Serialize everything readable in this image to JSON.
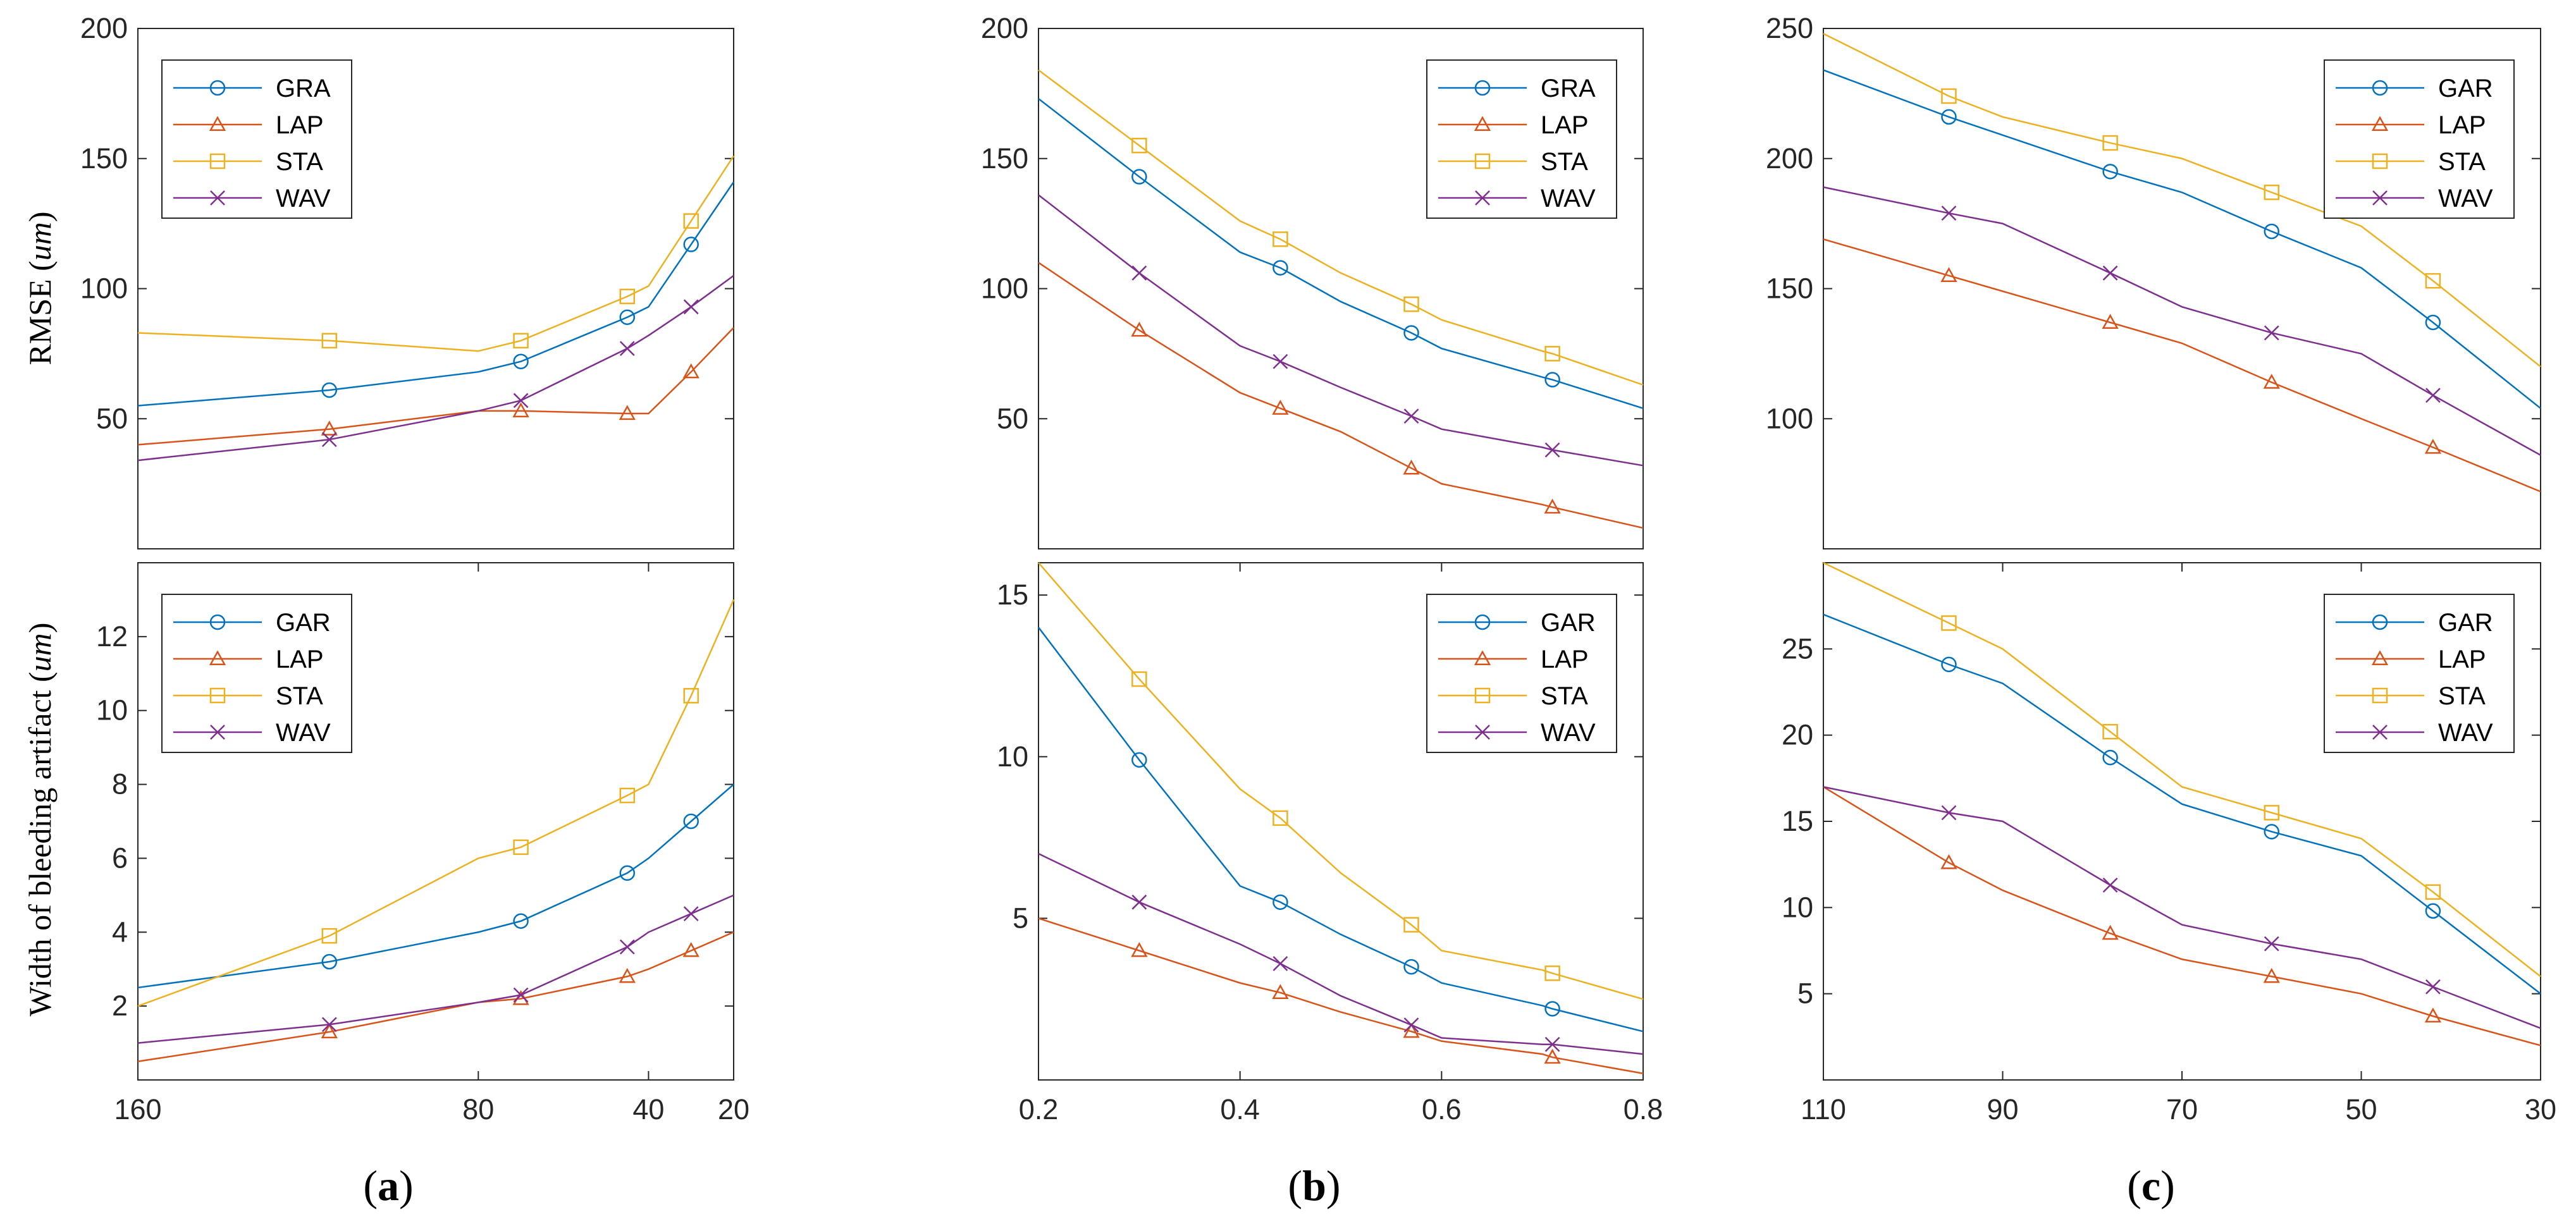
{
  "figure": {
    "colors": {
      "axis": "#262626",
      "series": [
        "#0072BD",
        "#D95319",
        "#EDB120",
        "#7E2F8E"
      ]
    },
    "panel_labels": [
      {
        "open": "(",
        "letter": "a",
        "close": ")"
      },
      {
        "open": "(",
        "letter": "b",
        "close": ")"
      },
      {
        "open": "(",
        "letter": "c",
        "close": ")"
      }
    ]
  },
  "chart_data": [
    {
      "id": "a-top",
      "type": "line",
      "x_dir": "reverse",
      "xlim": [
        20,
        160
      ],
      "xticks": [],
      "ylim": [
        0,
        200
      ],
      "yticks": [
        50,
        100,
        150,
        200
      ],
      "ylabel": {
        "prefix": "RMSE (",
        "unit": "um",
        "suffix": ")"
      },
      "legend": {
        "position": "top-left"
      },
      "series": [
        {
          "name": "GRA",
          "marker": "circle",
          "x": [
            160,
            115,
            80,
            70,
            45,
            40,
            30,
            20
          ],
          "y": [
            55,
            61,
            68,
            72,
            89,
            93,
            117,
            141
          ]
        },
        {
          "name": "LAP",
          "marker": "triangle",
          "x": [
            160,
            115,
            80,
            70,
            45,
            40,
            30,
            20
          ],
          "y": [
            40,
            46,
            53,
            53,
            52,
            52,
            68,
            85
          ]
        },
        {
          "name": "STA",
          "marker": "square",
          "x": [
            160,
            115,
            80,
            70,
            45,
            40,
            30,
            20
          ],
          "y": [
            83,
            80,
            76,
            80,
            97,
            101,
            126,
            151
          ]
        },
        {
          "name": "WAV",
          "marker": "x",
          "x": [
            160,
            115,
            80,
            70,
            45,
            40,
            30,
            20
          ],
          "y": [
            34,
            42,
            53,
            57,
            77,
            82,
            93,
            105
          ]
        }
      ],
      "marker_every": [
        1,
        3,
        4,
        6
      ]
    },
    {
      "id": "a-bottom",
      "type": "line",
      "x_dir": "reverse",
      "xlim": [
        20,
        160
      ],
      "xticks": [
        160,
        80,
        40,
        20
      ],
      "ylim": [
        0,
        14
      ],
      "yticks": [
        2,
        4,
        6,
        8,
        10,
        12
      ],
      "ylabel": {
        "prefix": "Width of bleeding artifact (",
        "unit": "um",
        "suffix": ")"
      },
      "legend": {
        "position": "top-left"
      },
      "series": [
        {
          "name": "GAR",
          "marker": "circle",
          "x": [
            160,
            115,
            80,
            70,
            45,
            40,
            30,
            20
          ],
          "y": [
            2.5,
            3.2,
            4,
            4.3,
            5.6,
            6,
            7,
            8
          ]
        },
        {
          "name": "LAP",
          "marker": "triangle",
          "x": [
            160,
            115,
            80,
            70,
            45,
            40,
            30,
            20
          ],
          "y": [
            0.5,
            1.3,
            2.1,
            2.2,
            2.8,
            3,
            3.5,
            4
          ]
        },
        {
          "name": "STA",
          "marker": "square",
          "x": [
            160,
            115,
            80,
            70,
            45,
            40,
            30,
            20
          ],
          "y": [
            2,
            3.9,
            6,
            6.3,
            7.7,
            8,
            10.4,
            13
          ]
        },
        {
          "name": "WAV",
          "marker": "x",
          "x": [
            160,
            115,
            80,
            70,
            45,
            40,
            30,
            20
          ],
          "y": [
            1,
            1.5,
            2.1,
            2.3,
            3.6,
            4,
            4.5,
            5
          ]
        }
      ],
      "marker_every": [
        1,
        3,
        4,
        6
      ]
    },
    {
      "id": "b-top",
      "type": "line",
      "x_dir": "normal",
      "xlim": [
        0.2,
        0.8
      ],
      "xticks": [],
      "ylim": [
        0,
        200
      ],
      "yticks": [
        50,
        100,
        150,
        200
      ],
      "ylabel": null,
      "legend": {
        "position": "top-right"
      },
      "series": [
        {
          "name": "GRA",
          "marker": "circle",
          "x": [
            0.2,
            0.3,
            0.4,
            0.44,
            0.5,
            0.57,
            0.6,
            0.7,
            0.71,
            0.8
          ],
          "y": [
            173,
            143,
            114,
            108,
            95,
            83,
            77,
            66,
            65,
            54
          ]
        },
        {
          "name": "LAP",
          "marker": "triangle",
          "x": [
            0.2,
            0.3,
            0.4,
            0.44,
            0.5,
            0.57,
            0.6,
            0.7,
            0.71,
            0.8
          ],
          "y": [
            110,
            84,
            60,
            54,
            45,
            31,
            25,
            17,
            16,
            8
          ]
        },
        {
          "name": "STA",
          "marker": "square",
          "x": [
            0.2,
            0.3,
            0.4,
            0.44,
            0.5,
            0.57,
            0.6,
            0.7,
            0.71,
            0.8
          ],
          "y": [
            184,
            155,
            126,
            119,
            106,
            94,
            88,
            76,
            75,
            63
          ]
        },
        {
          "name": "WAV",
          "marker": "x",
          "x": [
            0.2,
            0.3,
            0.4,
            0.44,
            0.5,
            0.57,
            0.6,
            0.7,
            0.71,
            0.8
          ],
          "y": [
            136,
            106,
            78,
            72,
            62,
            51,
            46,
            39,
            38,
            32
          ]
        }
      ],
      "marker_every": [
        1,
        3,
        5,
        8
      ]
    },
    {
      "id": "b-bottom",
      "type": "line",
      "x_dir": "normal",
      "xlim": [
        0.2,
        0.8
      ],
      "xticks": [
        0.2,
        0.4,
        0.6,
        0.8
      ],
      "ylim": [
        0,
        16
      ],
      "yticks": [
        5,
        10,
        15
      ],
      "ylabel": null,
      "legend": {
        "position": "top-right"
      },
      "series": [
        {
          "name": "GAR",
          "marker": "circle",
          "x": [
            0.2,
            0.3,
            0.4,
            0.44,
            0.5,
            0.57,
            0.6,
            0.7,
            0.71,
            0.8
          ],
          "y": [
            14,
            9.9,
            6,
            5.5,
            4.5,
            3.5,
            3,
            2.3,
            2.2,
            1.5
          ]
        },
        {
          "name": "LAP",
          "marker": "triangle",
          "x": [
            0.2,
            0.3,
            0.4,
            0.44,
            0.5,
            0.57,
            0.6,
            0.7,
            0.71,
            0.8
          ],
          "y": [
            5,
            4,
            3,
            2.7,
            2.1,
            1.5,
            1.2,
            0.8,
            0.7,
            0.2
          ]
        },
        {
          "name": "STA",
          "marker": "square",
          "x": [
            0.2,
            0.3,
            0.4,
            0.44,
            0.5,
            0.57,
            0.6,
            0.7,
            0.71,
            0.8
          ],
          "y": [
            16,
            12.4,
            9,
            8.1,
            6.4,
            4.8,
            4,
            3.4,
            3.3,
            2.5
          ]
        },
        {
          "name": "WAV",
          "marker": "x",
          "x": [
            0.2,
            0.3,
            0.4,
            0.44,
            0.5,
            0.57,
            0.6,
            0.7,
            0.71,
            0.8
          ],
          "y": [
            7,
            5.5,
            4.2,
            3.6,
            2.6,
            1.7,
            1.3,
            1.1,
            1.1,
            0.8
          ]
        }
      ],
      "marker_every": [
        1,
        3,
        5,
        8
      ]
    },
    {
      "id": "c-top",
      "type": "line",
      "x_dir": "reverse",
      "xlim": [
        30,
        110
      ],
      "xticks": [],
      "ylim": [
        50,
        250
      ],
      "yticks": [
        100,
        150,
        200,
        250
      ],
      "ylabel": null,
      "legend": {
        "position": "top-right"
      },
      "series": [
        {
          "name": "GAR",
          "marker": "circle",
          "x": [
            110,
            96,
            90,
            78,
            70,
            60,
            50,
            42,
            30
          ],
          "y": [
            234,
            216,
            209,
            195,
            187,
            172,
            158,
            137,
            104
          ]
        },
        {
          "name": "LAP",
          "marker": "triangle",
          "x": [
            110,
            96,
            90,
            78,
            70,
            60,
            50,
            42,
            30
          ],
          "y": [
            169,
            155,
            149,
            137,
            129,
            114,
            100,
            89,
            72
          ]
        },
        {
          "name": "STA",
          "marker": "square",
          "x": [
            110,
            96,
            90,
            78,
            70,
            60,
            50,
            42,
            30
          ],
          "y": [
            248,
            224,
            216,
            206,
            200,
            187,
            174,
            153,
            120
          ]
        },
        {
          "name": "WAV",
          "marker": "x",
          "x": [
            110,
            96,
            90,
            78,
            70,
            60,
            50,
            42,
            30
          ],
          "y": [
            189,
            179,
            175,
            156,
            143,
            133,
            125,
            109,
            86
          ]
        }
      ],
      "marker_every": [
        1,
        3,
        5,
        7
      ]
    },
    {
      "id": "c-bottom",
      "type": "line",
      "x_dir": "reverse",
      "xlim": [
        30,
        110
      ],
      "xticks": [
        110,
        90,
        70,
        50,
        30
      ],
      "ylim": [
        0,
        30
      ],
      "yticks": [
        5,
        10,
        15,
        20,
        25
      ],
      "ylabel": null,
      "legend": {
        "position": "top-right"
      },
      "series": [
        {
          "name": "GAR",
          "marker": "circle",
          "x": [
            110,
            96,
            90,
            78,
            70,
            60,
            50,
            42,
            30
          ],
          "y": [
            27,
            24.1,
            23,
            18.7,
            16,
            14.4,
            13,
            9.8,
            5
          ]
        },
        {
          "name": "LAP",
          "marker": "triangle",
          "x": [
            110,
            96,
            90,
            78,
            70,
            60,
            50,
            42,
            30
          ],
          "y": [
            17,
            12.6,
            11,
            8.5,
            7,
            6,
            5,
            3.7,
            2
          ]
        },
        {
          "name": "STA",
          "marker": "square",
          "x": [
            110,
            96,
            90,
            78,
            70,
            60,
            50,
            42,
            30
          ],
          "y": [
            30,
            26.5,
            25,
            20.2,
            17,
            15.5,
            14,
            10.9,
            6
          ]
        },
        {
          "name": "WAV",
          "marker": "x",
          "x": [
            110,
            96,
            90,
            78,
            70,
            60,
            50,
            42,
            30
          ],
          "y": [
            17,
            15.5,
            15,
            11.3,
            9,
            7.9,
            7,
            5.4,
            3
          ]
        }
      ],
      "marker_every": [
        1,
        3,
        5,
        7
      ]
    }
  ]
}
